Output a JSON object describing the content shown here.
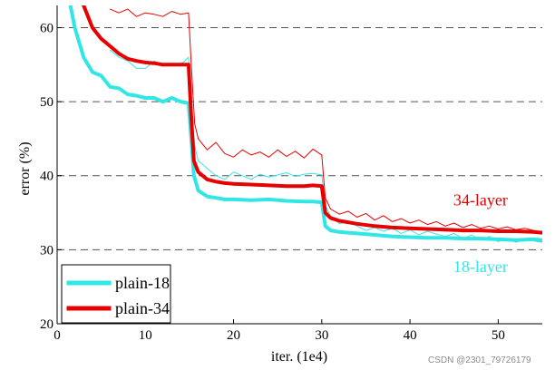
{
  "chart_data": {
    "type": "line",
    "xlabel": "iter. (1e4)",
    "ylabel": "error (%)",
    "xlim": [
      0,
      55
    ],
    "ylim": [
      20,
      63
    ],
    "xticks": [
      0,
      10,
      20,
      30,
      40,
      50
    ],
    "yticks": [
      20,
      30,
      40,
      50,
      60
    ],
    "grid": "dashed horizontal",
    "legend_position": "bottom-left",
    "legend": [
      {
        "label": "plain-18",
        "color": "#33e6e6"
      },
      {
        "label": "plain-34",
        "color": "#e60000"
      }
    ],
    "annotations": [
      {
        "text": "34-layer",
        "color": "#e60000",
        "x": 48,
        "y": 36
      },
      {
        "text": "18-layer",
        "color": "#33e6e6",
        "x": 48,
        "y": 27
      }
    ],
    "series": [
      {
        "name": "plain-18",
        "style": "thick",
        "color": "#33e6e6",
        "x": [
          1.5,
          2,
          2.5,
          3,
          3.5,
          4,
          5,
          6,
          7,
          8,
          9,
          10,
          11,
          12,
          13,
          14,
          14.9,
          15.2,
          15.5,
          16,
          17,
          18,
          19,
          20,
          22,
          24,
          26,
          28,
          29,
          30,
          30.4,
          31,
          32,
          34,
          36,
          38,
          40,
          42,
          44,
          46,
          48,
          50,
          52,
          54,
          55
        ],
        "y": [
          63,
          60,
          58,
          56,
          55,
          54,
          53.5,
          52,
          51.8,
          51,
          50.8,
          50.5,
          50.5,
          50,
          50.5,
          50,
          49.8,
          45,
          40,
          38,
          37.2,
          37,
          36.8,
          36.8,
          36.7,
          36.8,
          36.6,
          36.5,
          36.5,
          36.4,
          33.2,
          32.6,
          32.4,
          32.2,
          32.0,
          31.8,
          31.7,
          31.6,
          31.6,
          31.5,
          31.5,
          31.4,
          31.3,
          31.4,
          31.3
        ]
      },
      {
        "name": "plain-34",
        "style": "thick",
        "color": "#e60000",
        "x": [
          3,
          4,
          5,
          6,
          7,
          8,
          9,
          10,
          11,
          12,
          13,
          14,
          14.9,
          15.2,
          15.5,
          16,
          17,
          18,
          19,
          20,
          22,
          24,
          26,
          28,
          29,
          30,
          30.4,
          31,
          32,
          34,
          36,
          38,
          40,
          42,
          44,
          46,
          48,
          50,
          52,
          54,
          55
        ],
        "y": [
          63,
          60,
          58.5,
          57.5,
          56.5,
          55.8,
          55.5,
          55.3,
          55.2,
          55,
          55,
          55,
          55,
          48,
          42,
          40.5,
          39.5,
          39.2,
          39,
          38.9,
          38.8,
          38.7,
          38.6,
          38.6,
          38.7,
          38.6,
          35,
          34.3,
          33.9,
          33.5,
          33.2,
          33.0,
          32.9,
          32.8,
          32.7,
          32.6,
          32.6,
          32.5,
          32.5,
          32.4,
          32.3
        ]
      },
      {
        "name": "plain-18 (thin)",
        "style": "thin",
        "color": "#33e6e6",
        "x": [
          6,
          7,
          8,
          9,
          10,
          11,
          12,
          13,
          14,
          14.9,
          15.2,
          15.6,
          16,
          17,
          18,
          19,
          20,
          21,
          22,
          23,
          24,
          25,
          26,
          27,
          28,
          29,
          30,
          30.4,
          31,
          32,
          33,
          34,
          35,
          36,
          37,
          38,
          39,
          40,
          41,
          42,
          43,
          44,
          45,
          46,
          47,
          48,
          49,
          50,
          51,
          52,
          53,
          54,
          55
        ],
        "y": [
          57,
          56,
          55.5,
          54.5,
          54.5,
          55.5,
          54.8,
          55.2,
          55,
          56,
          50,
          44,
          42,
          41,
          40,
          39.5,
          40.5,
          40,
          39.5,
          40.2,
          39.8,
          40.1,
          40.4,
          39.9,
          40.2,
          40.3,
          40.1,
          36,
          34.5,
          33.5,
          33.8,
          33.2,
          32.6,
          33.0,
          32.5,
          32.9,
          32.2,
          32.7,
          32.0,
          32.5,
          32.1,
          31.8,
          32.2,
          31.5,
          32.0,
          31.3,
          31.8,
          31.1,
          31.5,
          31.0,
          31.4,
          31.2,
          31.0
        ]
      },
      {
        "name": "plain-34 (thin)",
        "style": "thin",
        "color": "#e60000",
        "x": [
          6,
          7,
          8,
          9,
          10,
          11,
          12,
          13,
          14,
          14.9,
          15.2,
          15.6,
          16,
          17,
          18,
          19,
          20,
          21,
          22,
          23,
          24,
          25,
          26,
          27,
          28,
          29,
          30,
          30.4,
          31,
          32,
          33,
          34,
          35,
          36,
          37,
          38,
          39,
          40,
          41,
          42,
          43,
          44,
          45,
          46,
          47,
          48,
          49,
          50,
          51,
          52,
          53,
          54,
          55
        ],
        "y": [
          62.5,
          62,
          62.5,
          61.5,
          62,
          61.8,
          61.5,
          62.2,
          61.8,
          62,
          55,
          47,
          45,
          43.5,
          44.5,
          43,
          42.5,
          43.5,
          42.8,
          43.2,
          42.5,
          43.5,
          42.6,
          43.3,
          42.4,
          43.6,
          42.8,
          37,
          35.5,
          34.8,
          35.2,
          34.4,
          34.9,
          34.0,
          34.6,
          33.8,
          34.2,
          33.6,
          34.0,
          33.4,
          33.8,
          33.2,
          33.6,
          33.0,
          33.4,
          32.9,
          33.2,
          32.8,
          33.1,
          32.7,
          32.9,
          32.6,
          32.4
        ]
      }
    ]
  },
  "watermark": "CSDN @2301_79726179"
}
